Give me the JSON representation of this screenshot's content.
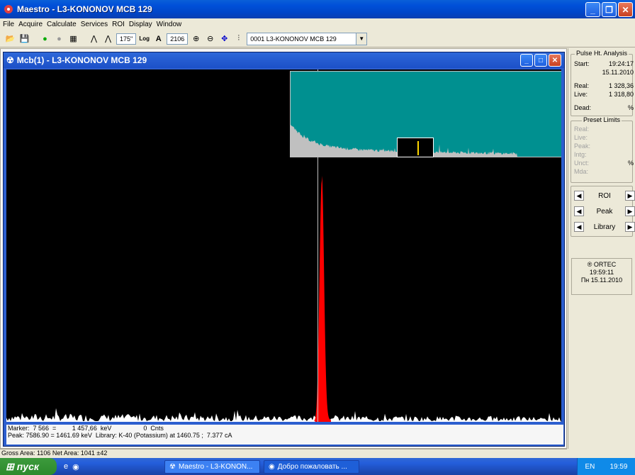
{
  "window": {
    "title": "Maestro - L3-KONONOV MCB 129"
  },
  "menu": [
    "File",
    "Acquire",
    "Calculate",
    "Services",
    "ROI",
    "Display",
    "Window"
  ],
  "toolbar": {
    "vfs": "175\"",
    "log": "Log",
    "auto": "A",
    "value": "2106",
    "detector": "0001  L3-KONONOV MCB 129"
  },
  "child": {
    "title": "Mcb(1) - L3-KONONOV MCB 129"
  },
  "status": {
    "line1": "Marker:  7 566  =         1 457,66  keV                  0  Cnts",
    "line2": "Peak: 7586.90 = 1461.69 keV  Library: K-40 (Potassium) at 1460.75 ;  7.377 cA",
    "gross": "Gross Area: 1106  Net Area: 1041 ±42"
  },
  "pha": {
    "title": "Pulse Ht. Analysis",
    "start_label": "Start:",
    "start_time": "19:24:17",
    "start_date": "15.11.2010",
    "real_label": "Real:",
    "real": "1 328,36",
    "live_label": "Live:",
    "live": "1 318,80",
    "dead_label": "Dead:",
    "dead": "%"
  },
  "preset": {
    "title": "Preset Limits",
    "real": "Real:",
    "live": "Live:",
    "peak": "Peak:",
    "intg": "Intg:",
    "unct": "Unct:",
    "unct_unit": "%",
    "mda": "Mda:"
  },
  "buttons": {
    "roi": "ROI",
    "peak": "Peak",
    "library": "Library"
  },
  "ortec": {
    "brand": "® ORTEC",
    "time": "19:59:11",
    "date": "Пн  15.11.2010"
  },
  "taskbar": {
    "start": "пуск",
    "task1": "Maestro - L3-KONON...",
    "task2": "Добро пожаловать ...",
    "lang": "EN",
    "clock": "19:59"
  },
  "colors": {
    "spectrum": "#ffffff",
    "peak": "#ff0000",
    "overview_bg": "#009090",
    "plot_bg": "#000000"
  }
}
